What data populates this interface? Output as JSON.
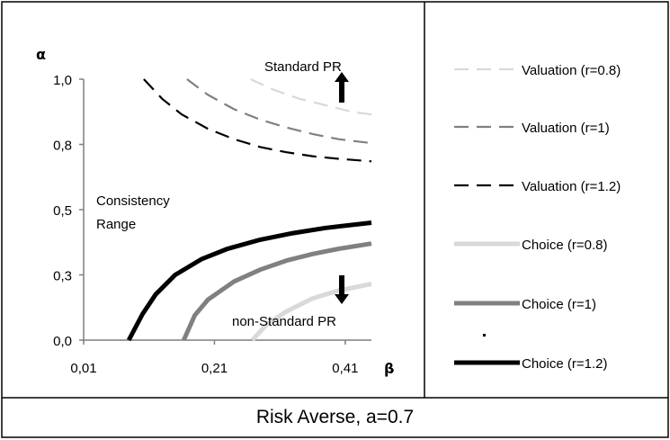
{
  "caption": "Risk Averse, a=0.7",
  "colors": {
    "light": "#d9d9d9",
    "medium": "#808080",
    "dark": "#000000"
  },
  "chart_data": {
    "type": "line",
    "xlabel": "β",
    "ylabel": "α",
    "x_ticks": [
      "0,01",
      "0,21",
      "0,41"
    ],
    "x_tick_values": [
      0.01,
      0.21,
      0.41
    ],
    "y_ticks": [
      "0,0",
      "0,3",
      "0,5",
      "0,8",
      "1,0"
    ],
    "y_tick_values": [
      0.0,
      0.25,
      0.5,
      0.75,
      1.0
    ],
    "xlim": [
      0.01,
      0.45
    ],
    "ylim": [
      0,
      1
    ],
    "annotations": {
      "standard": "Standard PR",
      "nonstandard": "non-Standard PR",
      "consistency_line1": "Consistency",
      "consistency_line2": "Range"
    },
    "series": [
      {
        "name": "Valuation (r=0.8)",
        "dash": true,
        "color": "light",
        "x": [
          0.265,
          0.3,
          0.34,
          0.38,
          0.42,
          0.45
        ],
        "y": [
          1.0,
          0.96,
          0.925,
          0.9,
          0.875,
          0.865
        ]
      },
      {
        "name": "Valuation (r=1)",
        "dash": true,
        "color": "medium",
        "x": [
          0.168,
          0.2,
          0.24,
          0.28,
          0.32,
          0.36,
          0.4,
          0.45
        ],
        "y": [
          1.0,
          0.94,
          0.885,
          0.845,
          0.815,
          0.79,
          0.77,
          0.755
        ]
      },
      {
        "name": "Valuation (r=1.2)",
        "dash": true,
        "color": "dark",
        "x": [
          0.102,
          0.13,
          0.16,
          0.2,
          0.24,
          0.28,
          0.32,
          0.36,
          0.4,
          0.45
        ],
        "y": [
          1.0,
          0.925,
          0.865,
          0.81,
          0.77,
          0.74,
          0.72,
          0.705,
          0.695,
          0.685
        ]
      },
      {
        "name": "Choice (r=0.8)",
        "dash": false,
        "color": "light",
        "x": [
          0.268,
          0.29,
          0.32,
          0.36,
          0.4,
          0.45
        ],
        "y": [
          0.0,
          0.06,
          0.11,
          0.16,
          0.19,
          0.215
        ]
      },
      {
        "name": "Choice (r=1)",
        "dash": false,
        "color": "medium",
        "x": [
          0.163,
          0.18,
          0.2,
          0.24,
          0.28,
          0.32,
          0.36,
          0.4,
          0.45
        ],
        "y": [
          0.0,
          0.095,
          0.155,
          0.225,
          0.27,
          0.305,
          0.33,
          0.35,
          0.37
        ]
      },
      {
        "name": "Choice (r=1.2)",
        "dash": false,
        "color": "dark",
        "x": [
          0.079,
          0.1,
          0.12,
          0.15,
          0.19,
          0.23,
          0.28,
          0.33,
          0.38,
          0.45
        ],
        "y": [
          0.0,
          0.1,
          0.175,
          0.25,
          0.31,
          0.35,
          0.385,
          0.41,
          0.43,
          0.45
        ]
      }
    ]
  }
}
